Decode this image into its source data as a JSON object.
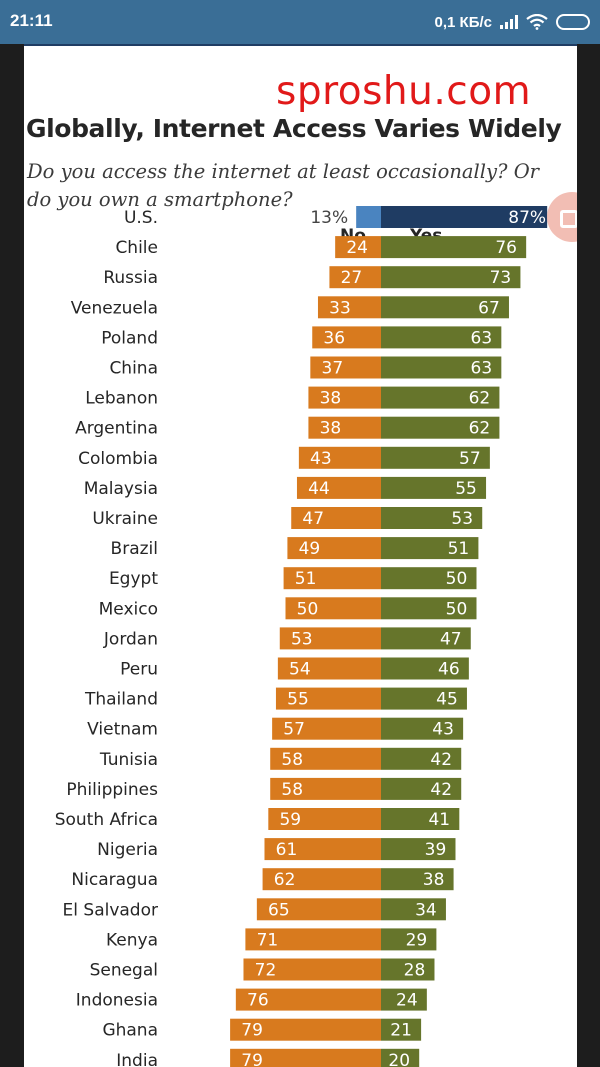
{
  "status_bar": {
    "time": "21:11",
    "network_speed": "0,1 КБ/с",
    "icons": [
      "signal-icon",
      "wifi-icon",
      "battery-icon"
    ]
  },
  "watermark": "sproshu.com",
  "chart_data": {
    "type": "bar",
    "orientation": "horizontal-diverging",
    "title": "Globally, Internet Access Varies Widely",
    "subtitle": "Do you access the internet at least occasionally?  Or do you own a smartphone?",
    "legend": [
      "No",
      "Yes"
    ],
    "legend_placement": "top",
    "colors": {
      "us_no": "#4a84c0",
      "us_yes": "#1f3c63",
      "no": "#d87a1e",
      "yes": "#66752b"
    },
    "categories": [
      "U.S.",
      "Chile",
      "Russia",
      "Venezuela",
      "Poland",
      "China",
      "Lebanon",
      "Argentina",
      "Colombia",
      "Malaysia",
      "Ukraine",
      "Brazil",
      "Egypt",
      "Mexico",
      "Jordan",
      "Peru",
      "Thailand",
      "Vietnam",
      "Tunisia",
      "Philippines",
      "South Africa",
      "Nigeria",
      "Nicaragua",
      "El Salvador",
      "Kenya",
      "Senegal",
      "Indonesia",
      "Ghana",
      "India"
    ],
    "series": [
      {
        "name": "No",
        "values": [
          13,
          24,
          27,
          33,
          36,
          37,
          38,
          38,
          43,
          44,
          47,
          49,
          51,
          50,
          53,
          54,
          55,
          57,
          58,
          58,
          59,
          61,
          62,
          65,
          71,
          72,
          76,
          79,
          79
        ]
      },
      {
        "name": "Yes",
        "values": [
          87,
          76,
          73,
          67,
          63,
          63,
          62,
          62,
          57,
          55,
          53,
          51,
          50,
          50,
          47,
          46,
          45,
          43,
          42,
          42,
          41,
          39,
          38,
          34,
          29,
          28,
          24,
          21,
          20
        ]
      }
    ],
    "value_labels": {
      "no": [
        "13%",
        "24",
        "27",
        "33",
        "36",
        "37",
        "38",
        "38",
        "43",
        "44",
        "47",
        "49",
        "51",
        "50",
        "53",
        "54",
        "55",
        "57",
        "58",
        "58",
        "59",
        "61",
        "62",
        "65",
        "71",
        "72",
        "76",
        "79",
        "79"
      ],
      "yes": [
        "87%",
        "76",
        "73",
        "67",
        "63",
        "63",
        "62",
        "62",
        "57",
        "55",
        "53",
        "51",
        "50",
        "50",
        "47",
        "46",
        "45",
        "43",
        "42",
        "42",
        "41",
        "39",
        "38",
        "34",
        "29",
        "28",
        "24",
        "21",
        "20"
      ]
    },
    "xlim": [
      0,
      100
    ],
    "grid": false
  }
}
